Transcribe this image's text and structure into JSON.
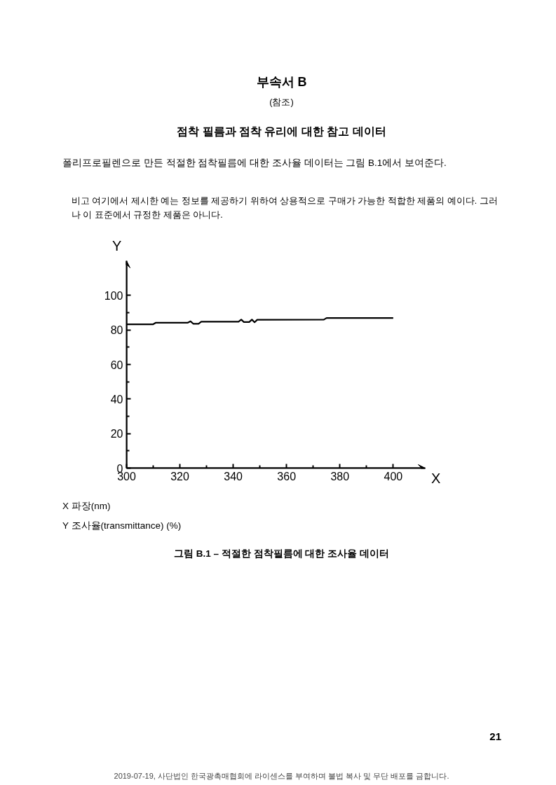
{
  "chart_data": {
    "type": "line",
    "title": "그림 B.1 – 적절한 점착필름에 대한 조사율 데이터",
    "xlabel": "X",
    "ylabel": "Y",
    "annotations": [
      "부속서 B",
      "(참조)",
      "점착 필름과 점착 유리에 대한 참고 데이터",
      "폴리프로필렌으로 만든 적절한 점착필름에 대한 조사율 데이터는 그림 B.1에서 보여준다.",
      "비고 여기에서 제시한 예는 정보를 제공하기 위하여 상용적으로 구매가 가능한 적합한 제품의 예이다. 그러나 이 표준에서 규정한 제품은 아니다.",
      "X   파장(nm)",
      "Y   조사율(transmittance) (%)",
      "21",
      "2019-07-19, 사단법인 한국광촉매협회에 라이센스를 부여하며 불법 복사 및 무단 배포를 금합니다."
    ],
    "x": [
      300,
      310,
      311,
      323,
      324,
      325,
      327,
      328,
      342,
      343,
      344,
      346,
      347,
      348,
      349,
      374,
      375,
      400
    ],
    "series": [
      {
        "color": "#000000",
        "values": [
          83.3,
          83.3,
          84.2,
          84.2,
          85,
          83.6,
          83.6,
          84.8,
          84.8,
          86,
          84.6,
          84.6,
          86,
          84.4,
          85.9,
          86,
          86.9,
          86.9
        ]
      }
    ],
    "xlim": [
      300,
      412
    ],
    "ylim": [
      0,
      120
    ],
    "xticks": [
      300,
      320,
      340,
      360,
      380,
      400
    ],
    "yticks": [
      0,
      20,
      40,
      60,
      80,
      100
    ],
    "grid": false,
    "marker": "none",
    "line_style": "solid"
  }
}
